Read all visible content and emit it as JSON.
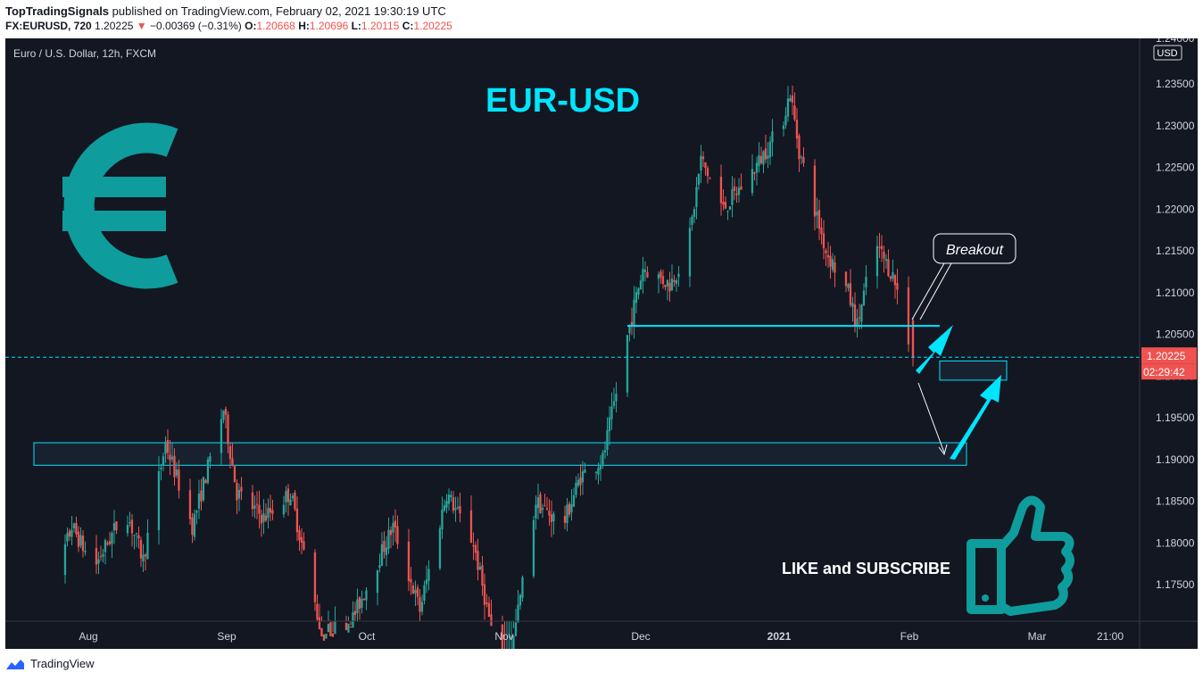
{
  "header": {
    "author": "TopTradingSignals",
    "published": "published on TradingView.com, February 02, 2021 19:30:19 UTC",
    "symbol": "FX:EURUSD, 720",
    "last": "1.20225",
    "change_arrow": "▼",
    "change": "−0.00369 (−0.31%)",
    "o_label": "O:",
    "o_value": "1.20668",
    "h_label": "H:",
    "h_value": "1.20696",
    "l_label": "L:",
    "l_value": "1.20115",
    "c_label": "C:",
    "c_value": "1.20225"
  },
  "chart_title": "Euro / U.S. Dollar, 12h, FXCM",
  "overlay": {
    "headline": "EUR-USD",
    "breakout_label": "Breakout",
    "cta": "LIKE and SUBSCRIBE"
  },
  "price_axis": {
    "currency": "USD",
    "top_partial": "1.24000",
    "last_price_tag": "1.20225",
    "countdown_tag": "02:29:42"
  },
  "footer": {
    "brand": "TradingView"
  },
  "colors": {
    "background": "#131722",
    "up": "#26a69a",
    "down": "#ef5350",
    "accent": "#00e5ff",
    "logo_teal": "#0e9c9c"
  },
  "icons": [
    "euro-icon",
    "thumbs-up-icon",
    "tradingview-logo-icon"
  ],
  "chart_data": {
    "type": "candlestick",
    "title": "Euro / U.S. Dollar, 12h, FXCM",
    "xlabel": "",
    "ylabel": "USD",
    "ylim": [
      1.17,
      1.242
    ],
    "x_ticks": [
      "Aug",
      "Sep",
      "Oct",
      "Nov",
      "Dec",
      "2021",
      "Feb",
      "Mar",
      "21:00"
    ],
    "y_ticks": [
      "1.23500",
      "1.23000",
      "1.22500",
      "1.22000",
      "1.21500",
      "1.21000",
      "1.20500",
      "1.20000",
      "1.19500",
      "1.19000",
      "1.18500",
      "1.18000",
      "1.17500"
    ],
    "current_price": 1.20225,
    "anchors": [
      [
        "2020-07-22",
        1.17
      ],
      [
        "2020-07-29",
        1.182
      ],
      [
        "2020-08-03",
        1.177
      ],
      [
        "2020-08-10",
        1.184
      ],
      [
        "2020-08-14",
        1.178
      ],
      [
        "2020-08-19",
        1.192
      ],
      [
        "2020-08-25",
        1.182
      ],
      [
        "2020-09-01",
        1.196
      ],
      [
        "2020-09-04",
        1.186
      ],
      [
        "2020-09-10",
        1.183
      ],
      [
        "2020-09-16",
        1.186
      ],
      [
        "2020-09-23",
        1.169
      ],
      [
        "2020-09-30",
        1.171
      ],
      [
        "2020-10-09",
        1.182
      ],
      [
        "2020-10-15",
        1.172
      ],
      [
        "2020-10-21",
        1.186
      ],
      [
        "2020-10-27",
        1.18
      ],
      [
        "2020-11-03",
        1.162
      ],
      [
        "2020-11-10",
        1.185
      ],
      [
        "2020-11-16",
        1.182
      ],
      [
        "2020-11-20",
        1.188
      ],
      [
        "2020-11-25",
        1.19
      ],
      [
        "2020-12-01",
        1.206
      ],
      [
        "2020-12-04",
        1.213
      ],
      [
        "2020-12-10",
        1.211
      ],
      [
        "2020-12-14",
        1.215
      ],
      [
        "2020-12-17",
        1.226
      ],
      [
        "2020-12-22",
        1.22
      ],
      [
        "2020-12-28",
        1.224
      ],
      [
        "2021-01-04",
        1.23
      ],
      [
        "2021-01-06",
        1.234
      ],
      [
        "2021-01-08",
        1.227
      ],
      [
        "2021-01-14",
        1.215
      ],
      [
        "2021-01-19",
        1.21
      ],
      [
        "2021-01-21",
        1.206
      ],
      [
        "2021-01-25",
        1.216
      ],
      [
        "2021-01-29",
        1.212
      ],
      [
        "2021-02-01",
        1.2067
      ],
      [
        "2021-02-02",
        1.20225
      ]
    ],
    "support_line": {
      "price": 1.206,
      "from": "2020-11-30",
      "to": "2021-02-08"
    },
    "zones": [
      {
        "from": "2020-07-20",
        "to": "2021-02-14",
        "low": 1.1893,
        "high": 1.192
      },
      {
        "from": "2021-02-08",
        "to": "2021-02-23",
        "low": 1.1995,
        "high": 1.2018
      }
    ],
    "last_bar": {
      "open": 1.20668,
      "high": 1.20696,
      "low": 1.20115,
      "close": 1.20225
    }
  }
}
